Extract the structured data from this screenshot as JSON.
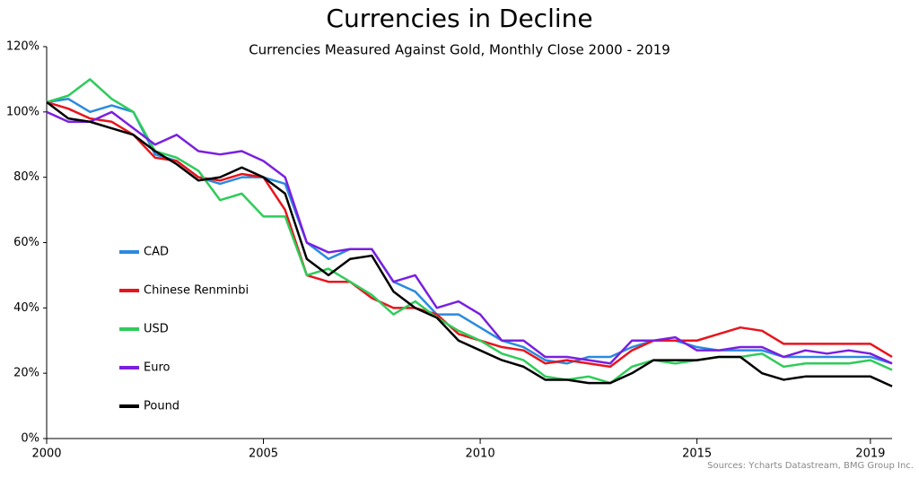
{
  "chart_data": {
    "type": "line",
    "title": "Currencies in Decline",
    "subtitle": "Currencies Measured Against Gold, Monthly Close 2000 - 2019",
    "source": "Sources: Ycharts Datastream, BMG Group Inc.",
    "x": [
      2000.0,
      2000.5,
      2001.0,
      2001.5,
      2002.0,
      2002.5,
      2003.0,
      2003.5,
      2004.0,
      2004.5,
      2005.0,
      2005.5,
      2006.0,
      2006.5,
      2007.0,
      2007.5,
      2008.0,
      2008.5,
      2009.0,
      2009.5,
      2010.0,
      2010.5,
      2011.0,
      2011.5,
      2012.0,
      2012.5,
      2013.0,
      2013.5,
      2014.0,
      2014.5,
      2015.0,
      2015.5,
      2016.0,
      2016.5,
      2017.0,
      2017.5,
      2018.0,
      2018.5,
      2019.0,
      2019.5
    ],
    "series": [
      {
        "name": "CAD",
        "color": "#2a8ae0",
        "values": [
          103,
          104,
          100,
          102,
          100,
          87,
          85,
          80,
          78,
          80,
          80,
          78,
          60,
          55,
          58,
          58,
          48,
          45,
          38,
          38,
          34,
          30,
          28,
          24,
          23,
          25,
          25,
          28,
          30,
          30,
          28,
          27,
          27,
          27,
          25,
          25,
          25,
          25,
          25,
          23
        ]
      },
      {
        "name": "Chinese Renminbi",
        "color": "#e8141c",
        "values": [
          103,
          101,
          98,
          97,
          93,
          86,
          85,
          80,
          79,
          81,
          80,
          70,
          50,
          48,
          48,
          43,
          40,
          40,
          38,
          32,
          30,
          28,
          27,
          23,
          24,
          23,
          22,
          27,
          30,
          30,
          30,
          32,
          34,
          33,
          29,
          29,
          29,
          29,
          29,
          25
        ]
      },
      {
        "name": "USD",
        "color": "#2ecc5a",
        "values": [
          103,
          105,
          110,
          104,
          100,
          88,
          86,
          82,
          73,
          75,
          68,
          68,
          50,
          52,
          48,
          44,
          38,
          42,
          37,
          33,
          30,
          26,
          24,
          19,
          18,
          19,
          17,
          22,
          24,
          23,
          24,
          25,
          25,
          26,
          22,
          23,
          23,
          23,
          24,
          21
        ]
      },
      {
        "name": "Euro",
        "color": "#7a1fe0",
        "values": [
          100,
          97,
          97,
          100,
          95,
          90,
          93,
          88,
          87,
          88,
          85,
          80,
          60,
          57,
          58,
          58,
          48,
          50,
          40,
          42,
          38,
          30,
          30,
          25,
          25,
          24,
          23,
          30,
          30,
          31,
          27,
          27,
          28,
          28,
          25,
          27,
          26,
          27,
          26,
          23
        ]
      },
      {
        "name": "Pound",
        "color": "#000000",
        "values": [
          103,
          98,
          97,
          95,
          93,
          88,
          84,
          79,
          80,
          83,
          80,
          75,
          55,
          50,
          55,
          56,
          45,
          40,
          37,
          30,
          27,
          24,
          22,
          18,
          18,
          17,
          17,
          20,
          24,
          24,
          24,
          25,
          25,
          20,
          18,
          19,
          19,
          19,
          19,
          16
        ]
      }
    ],
    "xlim": [
      2000,
      2019.5
    ],
    "xticks": [
      2000,
      2005,
      2010,
      2015,
      2019
    ],
    "ylim": [
      0,
      120
    ],
    "yticks": [
      {
        "value": 0,
        "label": "0%"
      },
      {
        "value": 20,
        "label": "20%"
      },
      {
        "value": 40,
        "label": "40%"
      },
      {
        "value": 60,
        "label": "60%"
      },
      {
        "value": 80,
        "label": "80%"
      },
      {
        "value": 100,
        "label": "100%"
      },
      {
        "value": 120,
        "label": "120%"
      }
    ],
    "legend": "left"
  }
}
